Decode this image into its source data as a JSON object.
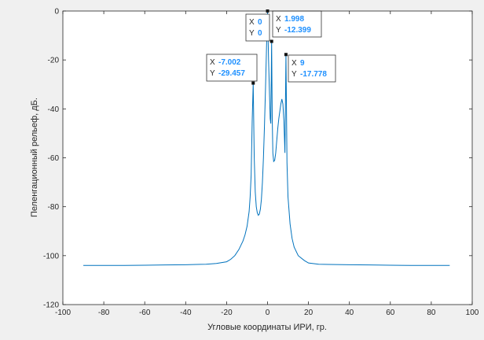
{
  "chart_data": {
    "type": "line",
    "xlabel": "Угловые координаты ИРИ, гр.",
    "ylabel": "Пеленгационный рельеф, дБ.",
    "xlim": [
      -100,
      100
    ],
    "ylim": [
      -120,
      0
    ],
    "x_ticks": [
      -100,
      -80,
      -60,
      -40,
      -20,
      0,
      20,
      40,
      60,
      80,
      100
    ],
    "y_ticks": [
      0,
      -20,
      -40,
      -60,
      -80,
      -100,
      -120
    ],
    "grid": false,
    "line_color": "#0072bd",
    "series": [
      {
        "x": [
          -90,
          -80,
          -70,
          -60,
          -50,
          -40,
          -30,
          -25,
          -20,
          -18,
          -16,
          -14,
          -12,
          -11,
          -10,
          -9,
          -8.5,
          -8,
          -7.5,
          -7.002,
          -6.5,
          -6,
          -5.5,
          -5,
          -4.5,
          -4,
          -3.5,
          -3,
          -2.5,
          -2,
          -1.5,
          -1,
          -0.5,
          0,
          0.5,
          1,
          1.3,
          1.6,
          1.998,
          2.3,
          2.6,
          3,
          3.5,
          4,
          4.5,
          5,
          5.5,
          6,
          6.5,
          7,
          7.5,
          8,
          8.5,
          9,
          9.5,
          10,
          11,
          12,
          13,
          15,
          18,
          20,
          25,
          30,
          40,
          50,
          60,
          70,
          80,
          89
        ],
        "y": [
          -104,
          -104,
          -104,
          -103.9,
          -103.8,
          -103.7,
          -103.5,
          -103.2,
          -102.5,
          -101.5,
          -100,
          -97.5,
          -94,
          -91.5,
          -88,
          -82,
          -76,
          -67,
          -45,
          -29.457,
          -60,
          -74,
          -80,
          -82.5,
          -83.5,
          -83,
          -81,
          -77,
          -70,
          -60,
          -47,
          -32,
          -15,
          0,
          -20,
          -35,
          -44,
          -46,
          -12.399,
          -44,
          -58,
          -61.5,
          -61,
          -58,
          -53,
          -48,
          -44,
          -41,
          -38,
          -36,
          -38,
          -45,
          -58,
          -17.778,
          -62,
          -76,
          -87,
          -93,
          -96.5,
          -100,
          -102,
          -103,
          -103.5,
          -103.6,
          -103.7,
          -103.8,
          -103.9,
          -104,
          -104,
          -104
        ]
      }
    ],
    "datatips": [
      {
        "x_key": "X",
        "y_key": "Y",
        "x": "-7.002",
        "y": "-29.457",
        "px": -7.002,
        "py": -29.457
      },
      {
        "x_key": "X",
        "y_key": "Y",
        "x": "0",
        "y": "0",
        "px": 0,
        "py": 0
      },
      {
        "x_key": "X",
        "y_key": "Y",
        "x": "1.998",
        "y": "-12.399",
        "px": 1.998,
        "py": -12.399
      },
      {
        "x_key": "X",
        "y_key": "Y",
        "x": "9",
        "y": "-17.778",
        "px": 9,
        "py": -17.778
      }
    ]
  }
}
